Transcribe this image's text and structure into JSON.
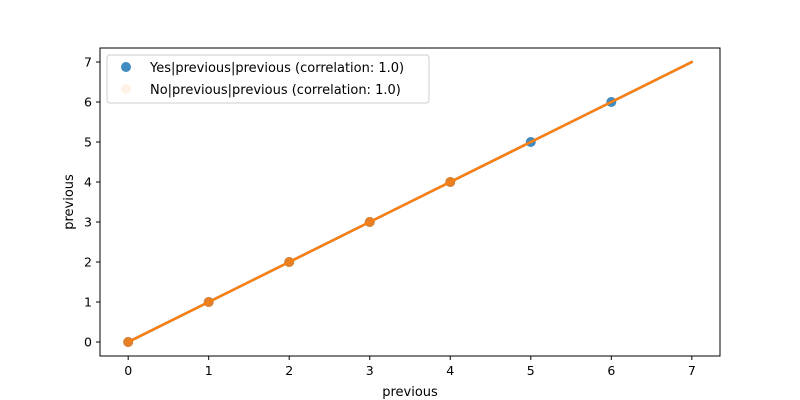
{
  "chart_data": {
    "type": "scatter",
    "xlabel": "previous",
    "ylabel": "previous",
    "xlim": [
      -0.35,
      7.35
    ],
    "ylim": [
      -0.35,
      7.35
    ],
    "xticks": [
      0,
      1,
      2,
      3,
      4,
      5,
      6,
      7
    ],
    "yticks": [
      0,
      1,
      2,
      3,
      4,
      5,
      6,
      7
    ],
    "grid": false,
    "legend_position": "top-left",
    "series": [
      {
        "name": "Yes|previous|previous (correlation: 1.0)",
        "color": "#1f77b4",
        "points": [
          [
            0,
            0
          ],
          [
            1,
            1
          ],
          [
            2,
            2
          ],
          [
            3,
            3
          ],
          [
            4,
            4
          ],
          [
            5,
            5
          ],
          [
            6,
            6
          ]
        ],
        "fit_line": [
          [
            0,
            0
          ],
          [
            7,
            7
          ]
        ]
      },
      {
        "name": "No|previous|previous (correlation: 1.0)",
        "color": "#ff7f0e",
        "points": [
          [
            0,
            0
          ],
          [
            1,
            1
          ],
          [
            2,
            2
          ],
          [
            3,
            3
          ],
          [
            4,
            4
          ]
        ],
        "fit_line": [
          [
            0,
            0
          ],
          [
            7,
            7
          ]
        ]
      }
    ]
  }
}
